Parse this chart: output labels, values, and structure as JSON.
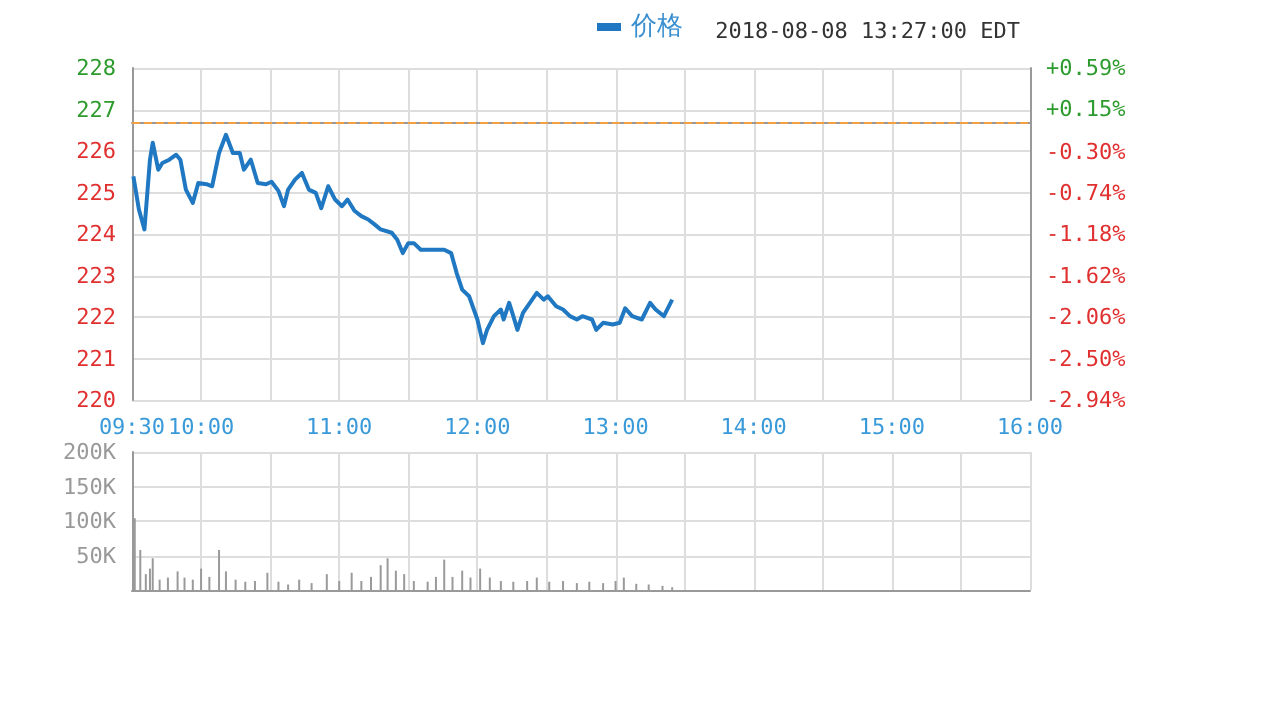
{
  "chart_data": [
    {
      "type": "line",
      "subtitle": "2018-08-08 13:27:00 EDT",
      "x": [
        9.51,
        9.55,
        9.59,
        9.63,
        9.65,
        9.69,
        9.72,
        9.77,
        9.82,
        9.85,
        9.89,
        9.94,
        9.98,
        10.04,
        10.08,
        10.13,
        10.18,
        10.23,
        10.28,
        10.31,
        10.36,
        10.41,
        10.47,
        10.51,
        10.56,
        10.6,
        10.63,
        10.68,
        10.73,
        10.78,
        10.83,
        10.87,
        10.92,
        10.97,
        11.02,
        11.06,
        11.11,
        11.16,
        11.21,
        11.26,
        11.3,
        11.38,
        11.42,
        11.46,
        11.5,
        11.54,
        11.59,
        11.66,
        11.76,
        11.81,
        11.85,
        11.89,
        11.94,
        12.0,
        12.04,
        12.07,
        12.12,
        12.17,
        12.19,
        12.23,
        12.26,
        12.29,
        12.33,
        12.38,
        12.43,
        12.48,
        12.51,
        12.57,
        12.62,
        12.67,
        12.72,
        12.76,
        12.83,
        12.86,
        12.91,
        12.98,
        13.03,
        13.07,
        13.12,
        13.19,
        13.25,
        13.29,
        13.35,
        13.41
      ],
      "series": [
        {
          "name": "价格",
          "color": "#1f78c1",
          "values": [
            225.39,
            224.59,
            224.11,
            225.79,
            226.2,
            225.55,
            225.71,
            225.79,
            225.91,
            225.79,
            225.07,
            224.75,
            225.23,
            225.2,
            225.15,
            225.95,
            226.39,
            225.95,
            225.95,
            225.55,
            225.79,
            225.23,
            225.2,
            225.26,
            225.04,
            224.67,
            225.07,
            225.31,
            225.47,
            225.07,
            224.99,
            224.62,
            225.15,
            224.83,
            224.67,
            224.83,
            224.56,
            224.43,
            224.35,
            224.22,
            224.11,
            224.03,
            223.86,
            223.54,
            223.78,
            223.78,
            223.62,
            223.62,
            223.62,
            223.54,
            223.06,
            222.66,
            222.5,
            221.94,
            221.37,
            221.69,
            222.02,
            222.18,
            221.94,
            222.34,
            222.02,
            221.69,
            222.1,
            222.34,
            222.58,
            222.42,
            222.5,
            222.26,
            222.18,
            222.02,
            221.94,
            222.02,
            221.94,
            221.69,
            221.86,
            221.82,
            221.86,
            222.21,
            222.02,
            221.94,
            222.34,
            222.18,
            222.02,
            222.42
          ]
        }
      ],
      "xlim": [
        9.5,
        16
      ],
      "xticks": [
        {
          "value": 9.5,
          "label": "09:30"
        },
        {
          "value": 10,
          "label": "10:00"
        },
        {
          "value": 10.5,
          "label": null
        },
        {
          "value": 11,
          "label": "11:00"
        },
        {
          "value": 11.5,
          "label": null
        },
        {
          "value": 12,
          "label": "12:00"
        },
        {
          "value": 12.5,
          "label": null
        },
        {
          "value": 13,
          "label": "13:00"
        },
        {
          "value": 13.5,
          "label": null
        },
        {
          "value": 14,
          "label": "14:00"
        },
        {
          "value": 14.5,
          "label": null
        },
        {
          "value": 15,
          "label": "15:00"
        },
        {
          "value": 15.5,
          "label": null
        },
        {
          "value": 16,
          "label": "16:00"
        }
      ],
      "ylim": [
        220,
        228
      ],
      "yticks": [
        220,
        221,
        222,
        223,
        224,
        225,
        226,
        227,
        228
      ],
      "y2lim": [
        -2.94,
        0.59
      ],
      "y2ticks": [
        {
          "value": -2.94,
          "label": "-2.94%"
        },
        {
          "value": -2.5,
          "label": "-2.50%"
        },
        {
          "value": -2.06,
          "label": "-2.06%"
        },
        {
          "value": -1.62,
          "label": "-1.62%"
        },
        {
          "value": -1.18,
          "label": "-1.18%"
        },
        {
          "value": -0.74,
          "label": "-0.74%"
        },
        {
          "value": -0.3,
          "label": "-0.30%"
        },
        {
          "value": 0.15,
          "label": "+0.15%"
        },
        {
          "value": 0.59,
          "label": "+0.59%"
        }
      ],
      "ref_lines": [
        {
          "axis": "y",
          "value": 226.68,
          "color": "#f5a040",
          "line_style": "dashed"
        }
      ],
      "grid": true,
      "legend": "top",
      "marker": "none",
      "line_style": "solid"
    },
    {
      "type": "bar",
      "x": [
        9.52,
        9.56,
        9.6,
        9.63,
        9.65,
        9.7,
        9.76,
        9.83,
        9.88,
        9.94,
        10.0,
        10.06,
        10.13,
        10.18,
        10.25,
        10.32,
        10.39,
        10.48,
        10.56,
        10.63,
        10.71,
        10.8,
        10.91,
        11.0,
        11.09,
        11.16,
        11.23,
        11.3,
        11.35,
        11.41,
        11.47,
        11.54,
        11.64,
        11.7,
        11.76,
        11.82,
        11.89,
        11.95,
        12.02,
        12.09,
        12.17,
        12.26,
        12.36,
        12.43,
        12.52,
        12.62,
        12.72,
        12.81,
        12.91,
        13.0,
        13.06,
        13.15,
        13.24,
        13.34,
        13.41
      ],
      "series": [
        {
          "color": "#9a9a9a",
          "values": [
            104000,
            58000,
            23000,
            31000,
            46000,
            15000,
            18000,
            27000,
            18000,
            15000,
            31000,
            19000,
            58000,
            27000,
            15000,
            12000,
            13000,
            25000,
            12000,
            8000,
            15000,
            10000,
            23000,
            13000,
            25000,
            13000,
            19000,
            36000,
            46000,
            28000,
            23000,
            13000,
            12000,
            19000,
            44000,
            19000,
            28000,
            18000,
            31000,
            18000,
            13000,
            12000,
            13000,
            18000,
            12000,
            13000,
            10000,
            12000,
            10000,
            13000,
            18000,
            9000,
            8000,
            6000,
            4000
          ]
        }
      ],
      "xlim": [
        9.5,
        16
      ],
      "xticks": [
        9.5,
        10,
        10.5,
        11,
        11.5,
        12,
        12.5,
        13,
        13.5,
        14,
        14.5,
        15,
        15.5,
        16
      ],
      "ylim": [
        0,
        200000
      ],
      "yticks": [
        {
          "value": 0,
          "label": null
        },
        {
          "value": 50000,
          "label": "50K"
        },
        {
          "value": 100000,
          "label": "100K"
        },
        {
          "value": 150000,
          "label": "150K"
        },
        {
          "value": 200000,
          "label": "200K"
        }
      ],
      "grid": true,
      "tick_labels": "y"
    }
  ]
}
